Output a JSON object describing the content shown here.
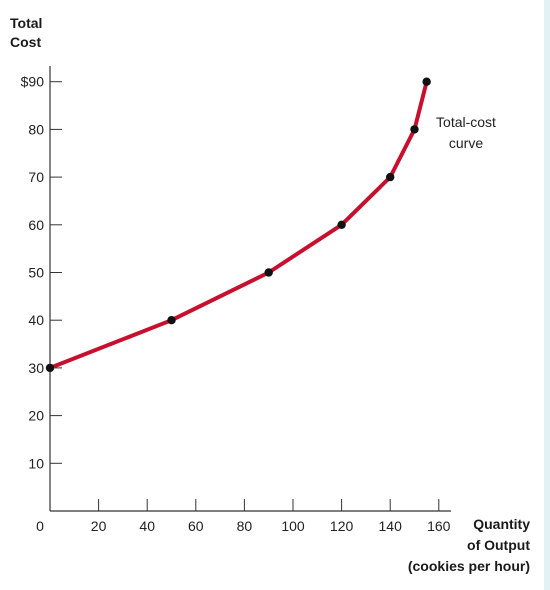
{
  "chart_data": {
    "type": "line",
    "ylabel_lines": [
      "Total",
      "Cost"
    ],
    "xlabel_lines": [
      "Quantity",
      "of Output",
      "(cookies per hour)"
    ],
    "annotation_lines": [
      "Total-cost",
      "curve"
    ],
    "x_ticks": [
      0,
      20,
      40,
      60,
      80,
      100,
      120,
      140,
      160
    ],
    "x_tick_labels": [
      "0",
      "20",
      "40",
      "60",
      "80",
      "100",
      "120",
      "140",
      "160"
    ],
    "y_ticks": [
      10,
      20,
      30,
      40,
      50,
      60,
      70,
      80,
      90
    ],
    "y_tick_labels": [
      "10",
      "20",
      "30",
      "40",
      "50",
      "60",
      "70",
      "80",
      "$90"
    ],
    "xlim": [
      0,
      165
    ],
    "ylim": [
      0,
      95
    ],
    "grid": false,
    "series": [
      {
        "x": [
          0,
          50,
          90,
          120,
          140,
          150,
          155
        ],
        "y": [
          30,
          40,
          50,
          60,
          70,
          80,
          90
        ]
      }
    ],
    "colors": {
      "curve": "#c8102e",
      "points": "#111111",
      "axis": "#333333"
    }
  }
}
